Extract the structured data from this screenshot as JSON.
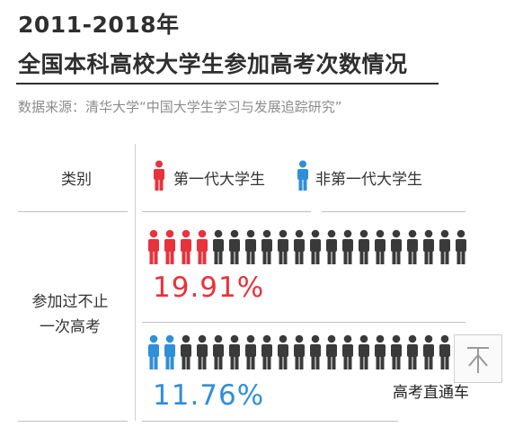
{
  "header": {
    "title_line1": "2011-2018年",
    "title_line2": "全国本科高校大学生参加高考次数情况",
    "source": "数据来源：清华大学“中国大学生学习与发展追踪研究”"
  },
  "table": {
    "category_header": "类别",
    "row_label_line1": "参加过不止",
    "row_label_line2": "一次高考"
  },
  "colors": {
    "first_gen": "#e8323c",
    "non_first_gen": "#2f8fd8",
    "rest": "#3a3a3a"
  },
  "watermark": "高考直通车",
  "chart_data": {
    "type": "bar",
    "icon_units_per_row": 20,
    "categories": [
      "参加过不止一次高考"
    ],
    "series": [
      {
        "name": "第一代大学生",
        "values": [
          19.91
        ],
        "label": "19.91%",
        "color": "#e8323c"
      },
      {
        "name": "非第一代大学生",
        "values": [
          11.76
        ],
        "label": "11.76%",
        "color": "#2f8fd8"
      }
    ],
    "ylim": [
      0,
      100
    ]
  }
}
